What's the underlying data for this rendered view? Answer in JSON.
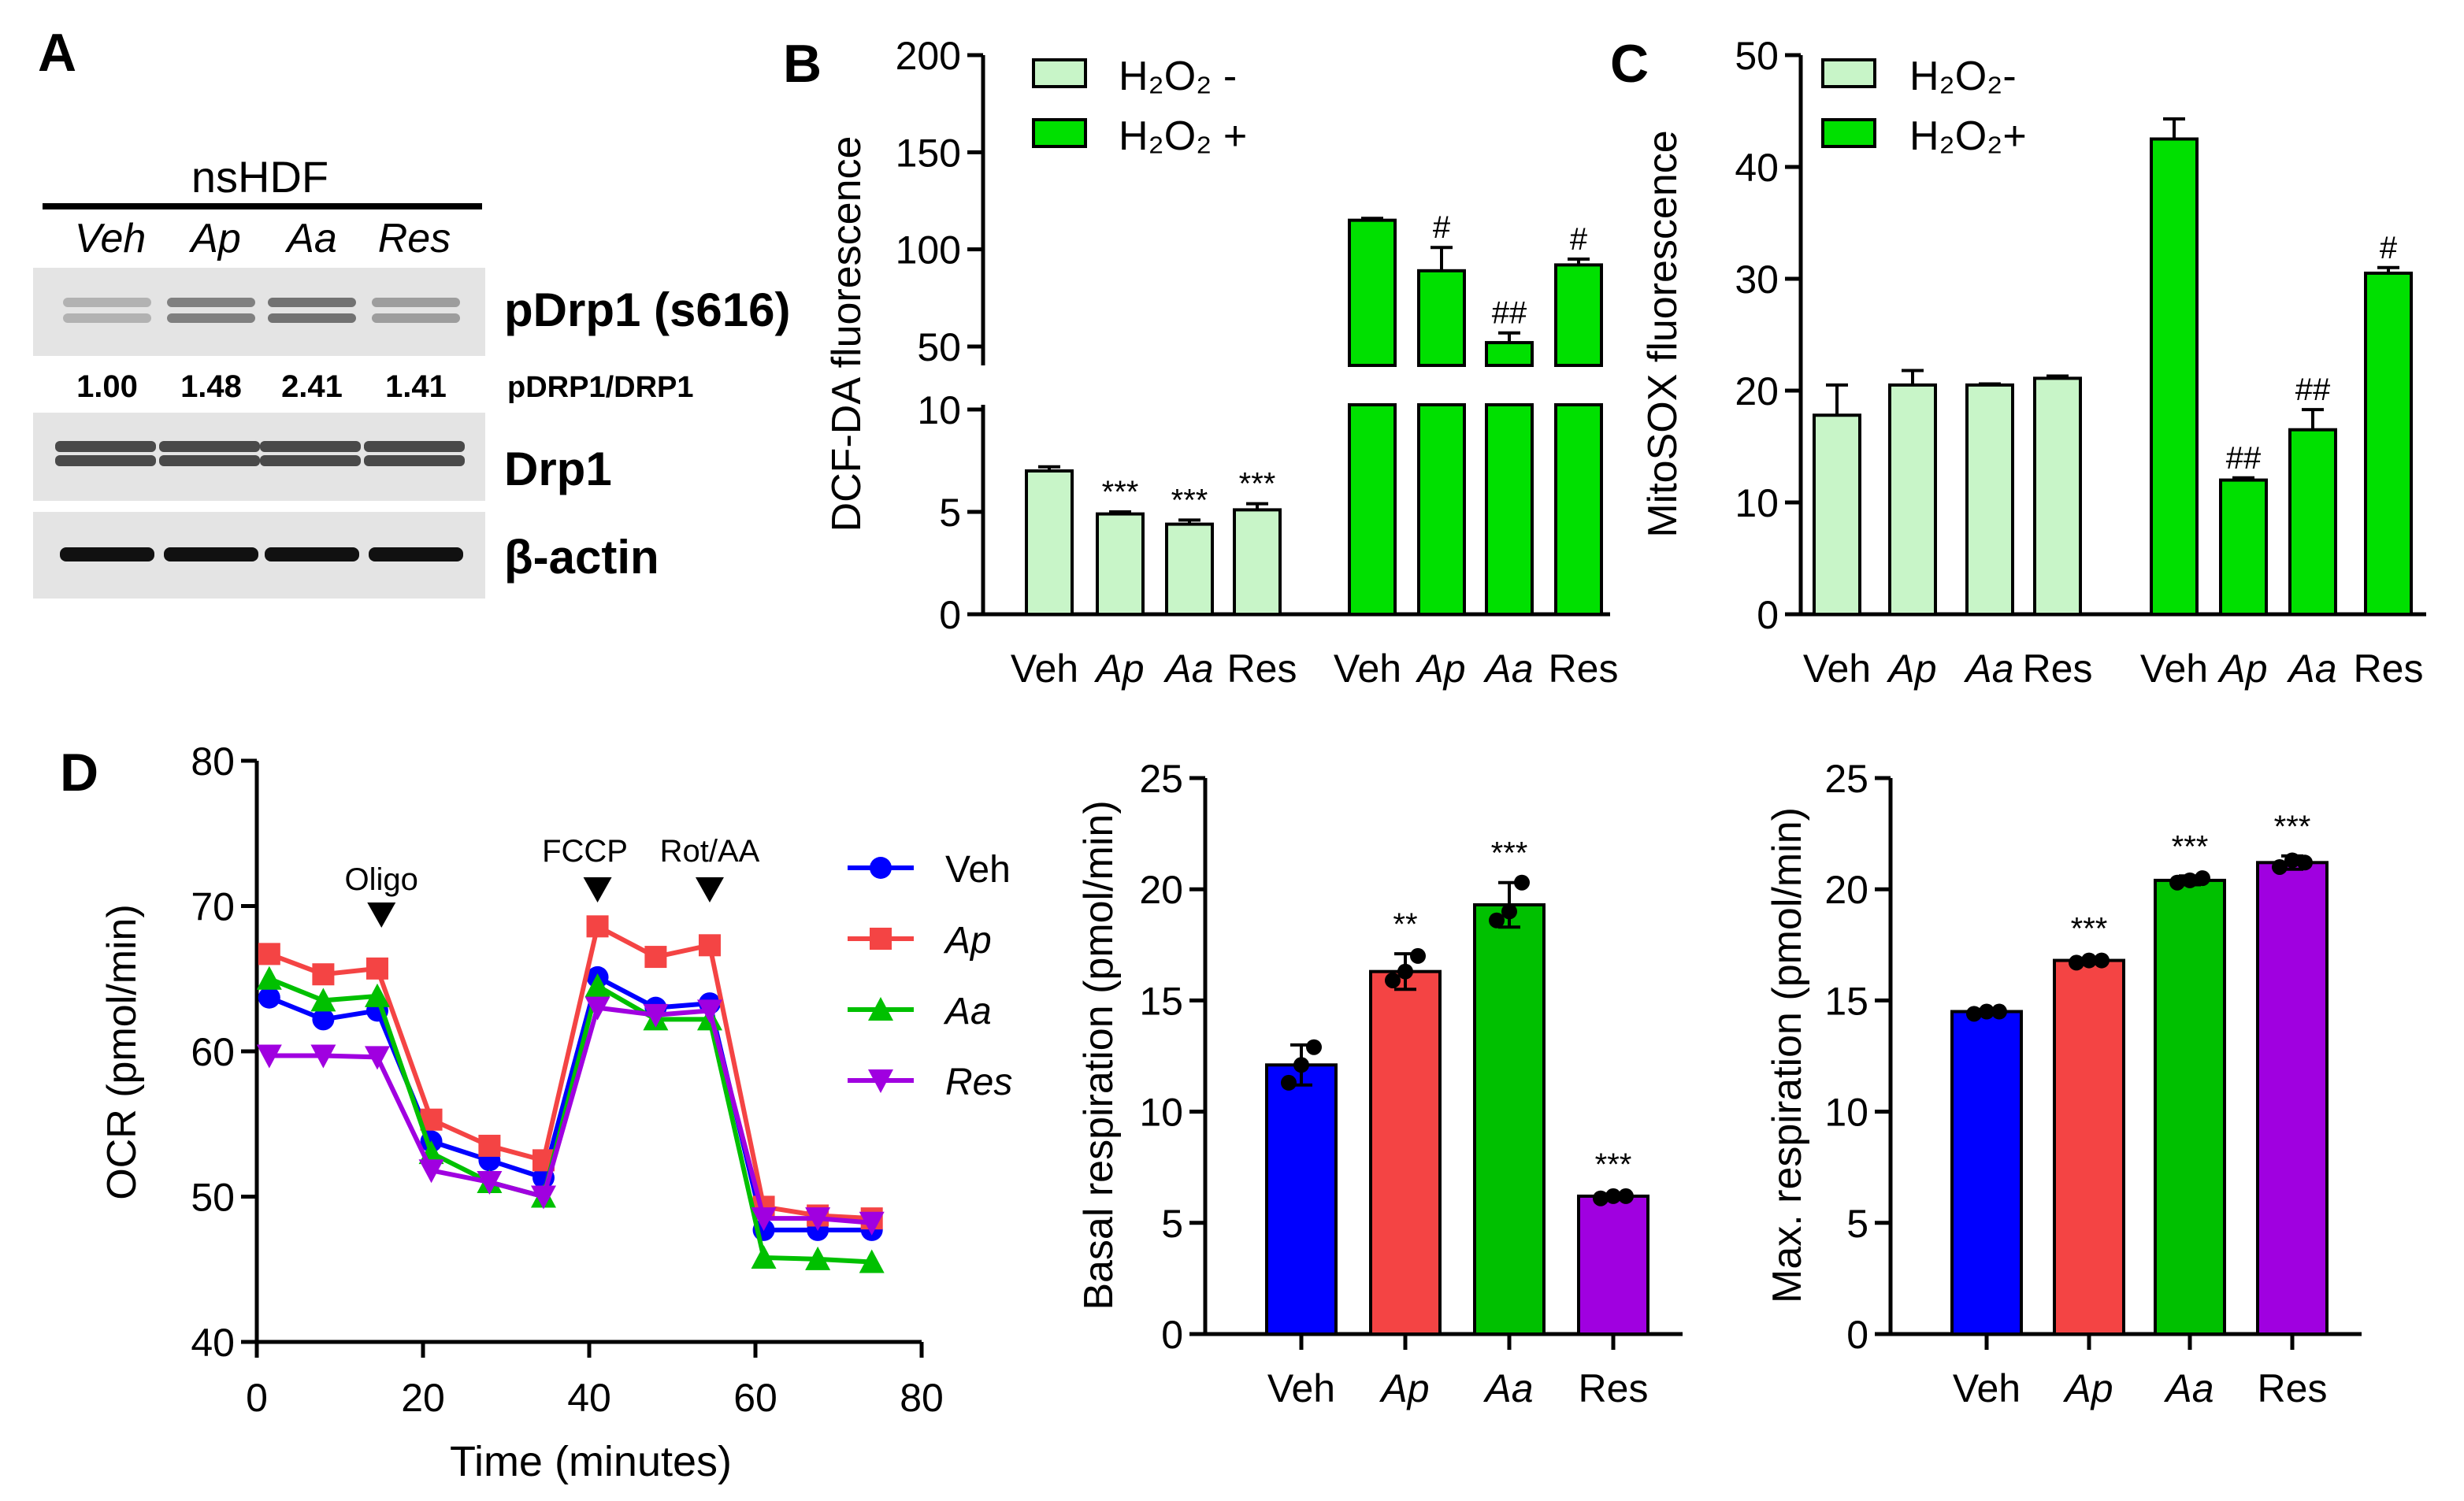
{
  "panel_labels": [
    "A",
    "B",
    "C",
    "D"
  ],
  "western_blot": {
    "cell_line": "nsHDF",
    "lanes": [
      "Veh",
      "Ap",
      "Aa",
      "Res"
    ],
    "rows": [
      {
        "label": "pDrp1 (s616)"
      },
      {
        "label": "Drp1"
      },
      {
        "label": "β-actin"
      }
    ],
    "ratio_label": "pDRP1/DRP1",
    "ratios": [
      "1.00",
      "1.48",
      "2.41",
      "1.41"
    ]
  },
  "colors": {
    "Veh": "#0000ff",
    "Ap": "#f44444",
    "Aa": "#00c000",
    "Res": "#a000e0",
    "light_green": "#c8f5c8",
    "bright_green": "#00e000"
  },
  "chart_data": [
    {
      "id": "B",
      "type": "bar",
      "ylabel": "DCF-DA fluorescence",
      "yaxis_break": {
        "lower": [
          0,
          10
        ],
        "upper": [
          50,
          200
        ]
      },
      "yticks_lower": [
        0,
        5,
        10
      ],
      "yticks_upper": [
        50,
        100,
        150,
        200
      ],
      "categories": [
        "Veh",
        "Ap",
        "Aa",
        "Res"
      ],
      "italic_categories": [
        "Ap",
        "Aa"
      ],
      "series": [
        {
          "name": "H₂O₂ -",
          "values": [
            7.0,
            4.9,
            4.4,
            5.1
          ],
          "errors": [
            0.2,
            0.1,
            0.2,
            0.3
          ],
          "annotations": [
            "",
            "***",
            "***",
            "***"
          ]
        },
        {
          "name": "H₂O₂ +",
          "values": [
            115,
            89,
            52,
            92
          ],
          "errors": [
            1,
            12,
            5,
            3
          ],
          "annotations": [
            "",
            "#",
            "##",
            "#"
          ]
        }
      ]
    },
    {
      "id": "C",
      "type": "bar",
      "ylabel": "MitoSOX fluorescence",
      "ylim": [
        0,
        50
      ],
      "yticks": [
        0,
        10,
        20,
        30,
        40,
        50
      ],
      "categories": [
        "Veh",
        "Ap",
        "Aa",
        "Res"
      ],
      "italic_categories": [
        "Ap",
        "Aa"
      ],
      "series": [
        {
          "name": "H₂O₂-",
          "values": [
            17.8,
            20.5,
            20.5,
            21.1
          ],
          "errors": [
            2.7,
            1.3,
            0.1,
            0.2
          ],
          "annotations": [
            "",
            "",
            "",
            ""
          ]
        },
        {
          "name": "H₂O₂+",
          "values": [
            42.5,
            12.0,
            16.5,
            30.5
          ],
          "errors": [
            1.8,
            0.2,
            1.8,
            0.5
          ],
          "annotations": [
            "",
            "##",
            "##",
            "#"
          ]
        }
      ]
    },
    {
      "id": "D-ocr",
      "type": "line",
      "xlabel": "Time (minutes)",
      "ylabel": "OCR (pmol/min)",
      "xlim": [
        0,
        80
      ],
      "ylim": [
        40,
        80
      ],
      "xticks": [
        0,
        20,
        40,
        60,
        80
      ],
      "yticks": [
        40,
        50,
        60,
        70,
        80
      ],
      "x": [
        1.5,
        8,
        14.5,
        21,
        28,
        34.5,
        41,
        48,
        54.5,
        61,
        67.5,
        74
      ],
      "injections": [
        {
          "label": "Oligo",
          "time": 15
        },
        {
          "label": "FCCP",
          "time": 41
        },
        {
          "label": "Rot/AA",
          "time": 54.5
        }
      ],
      "series": [
        {
          "name": "Veh",
          "marker": "circle",
          "values": [
            63.7,
            62.2,
            62.8,
            53.8,
            52.5,
            51.3,
            65.1,
            63.0,
            63.3,
            47.7,
            47.7,
            47.7
          ]
        },
        {
          "name": "Ap",
          "marker": "square",
          "values": [
            66.7,
            65.3,
            65.7,
            55.3,
            53.5,
            52.5,
            68.6,
            66.5,
            67.3,
            49.3,
            48.7,
            48.5
          ]
        },
        {
          "name": "Aa",
          "marker": "triangle-up",
          "values": [
            65.0,
            63.5,
            63.8,
            53.0,
            51.0,
            50.0,
            64.5,
            62.2,
            62.2,
            45.8,
            45.7,
            45.5
          ]
        },
        {
          "name": "Res",
          "marker": "triangle-down",
          "values": [
            59.7,
            59.7,
            59.6,
            51.8,
            51.0,
            50.0,
            63.0,
            62.5,
            62.8,
            48.5,
            48.5,
            48.2
          ]
        }
      ]
    },
    {
      "id": "D-basal",
      "type": "bar",
      "ylabel": "Basal respiration (pmol/min)",
      "ylim": [
        0,
        25
      ],
      "yticks": [
        0,
        5,
        10,
        15,
        20,
        25
      ],
      "categories": [
        "Veh",
        "Ap",
        "Aa",
        "Res"
      ],
      "values": [
        12.1,
        16.3,
        19.3,
        6.2
      ],
      "errors": [
        0.9,
        0.8,
        1.0,
        0.1
      ],
      "points": [
        [
          11.3,
          12.1,
          12.9
        ],
        [
          15.9,
          16.3,
          17.0
        ],
        [
          18.6,
          19.0,
          20.3
        ],
        [
          6.1,
          6.2,
          6.2
        ]
      ],
      "annotations": [
        "",
        "**",
        "***",
        "***"
      ]
    },
    {
      "id": "D-max",
      "type": "bar",
      "ylabel": "Max. respiration (pmol/min)",
      "ylim": [
        0,
        25
      ],
      "yticks": [
        0,
        5,
        10,
        15,
        20,
        25
      ],
      "categories": [
        "Veh",
        "Ap",
        "Aa",
        "Res"
      ],
      "values": [
        14.5,
        16.8,
        20.4,
        21.2
      ],
      "errors": [
        0.1,
        0.1,
        0.2,
        0.3
      ],
      "points": [
        [
          14.4,
          14.5,
          14.5
        ],
        [
          16.7,
          16.8,
          16.8
        ],
        [
          20.3,
          20.4,
          20.5
        ],
        [
          21.0,
          21.3,
          21.2
        ]
      ],
      "annotations": [
        "",
        "***",
        "***",
        "***"
      ]
    }
  ]
}
